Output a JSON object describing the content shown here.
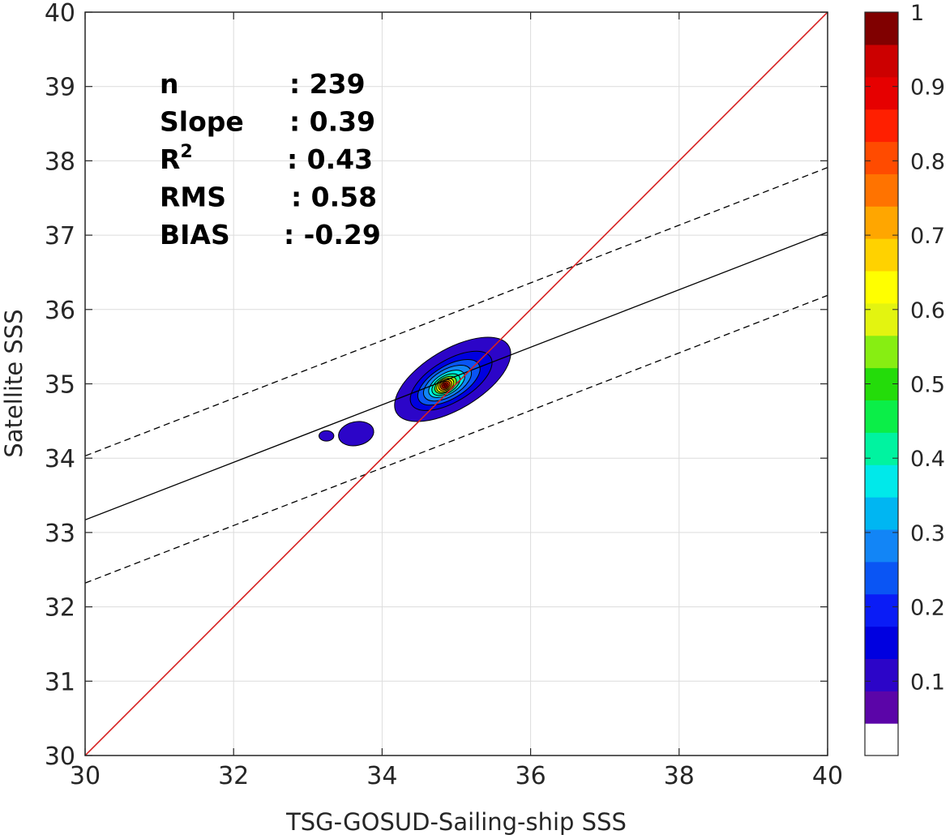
{
  "chart_data": {
    "type": "contour",
    "xlabel": "TSG-GOSUD-Sailing-ship SSS",
    "ylabel": "Satellite SSS",
    "xlim": [
      30,
      40
    ],
    "ylim": [
      30,
      40
    ],
    "x_ticks": [
      30,
      32,
      34,
      36,
      38,
      40
    ],
    "y_ticks": [
      30,
      31,
      32,
      33,
      34,
      35,
      36,
      37,
      38,
      39,
      40
    ],
    "grid": true,
    "stats": [
      {
        "label": "n",
        "value": ": 239"
      },
      {
        "label": "Slope",
        "value": ": 0.39"
      },
      {
        "label": "R",
        "sup": "2",
        "value": ": 0.43"
      },
      {
        "label": "RMS",
        "value": ": 0.58"
      },
      {
        "label": "BIAS",
        "value": ": -0.29"
      }
    ],
    "lines": {
      "one_to_one": {
        "x": [
          30,
          40
        ],
        "y": [
          30,
          40
        ],
        "color": "#d62020"
      },
      "regression": {
        "x": [
          30,
          40
        ],
        "y": [
          33.17,
          37.04
        ],
        "color": "#000000"
      },
      "upper_bound": {
        "x": [
          30,
          40
        ],
        "y": [
          34.03,
          37.91
        ],
        "style": "dashed"
      },
      "lower_bound": {
        "x": [
          30,
          40
        ],
        "y": [
          32.32,
          36.19
        ],
        "style": "dashed"
      }
    },
    "density": {
      "peak_x": 34.85,
      "peak_y": 34.98,
      "peak_value": 1.0,
      "secondary_blobs": [
        {
          "x": 33.25,
          "y": 34.3,
          "value": 0.08
        },
        {
          "x": 33.65,
          "y": 34.33,
          "value": 0.08
        }
      ]
    },
    "colorbar": {
      "ticks": [
        "0.1",
        "0.2",
        "0.3",
        "0.4",
        "0.5",
        "0.6",
        "0.7",
        "0.8",
        "0.9",
        "1"
      ],
      "colors": [
        "#ffffff",
        "#5b05a8",
        "#2c05c8",
        "#0000e0",
        "#0a1cf6",
        "#0a55f4",
        "#1285f6",
        "#00b6f2",
        "#00e9ea",
        "#00f3a0",
        "#0bee48",
        "#24dc0a",
        "#87ee12",
        "#e3f410",
        "#ffff00",
        "#ffd200",
        "#ffa600",
        "#ff7300",
        "#ff4b00",
        "#ff1f00",
        "#e60000",
        "#cc0000",
        "#800000"
      ]
    }
  }
}
